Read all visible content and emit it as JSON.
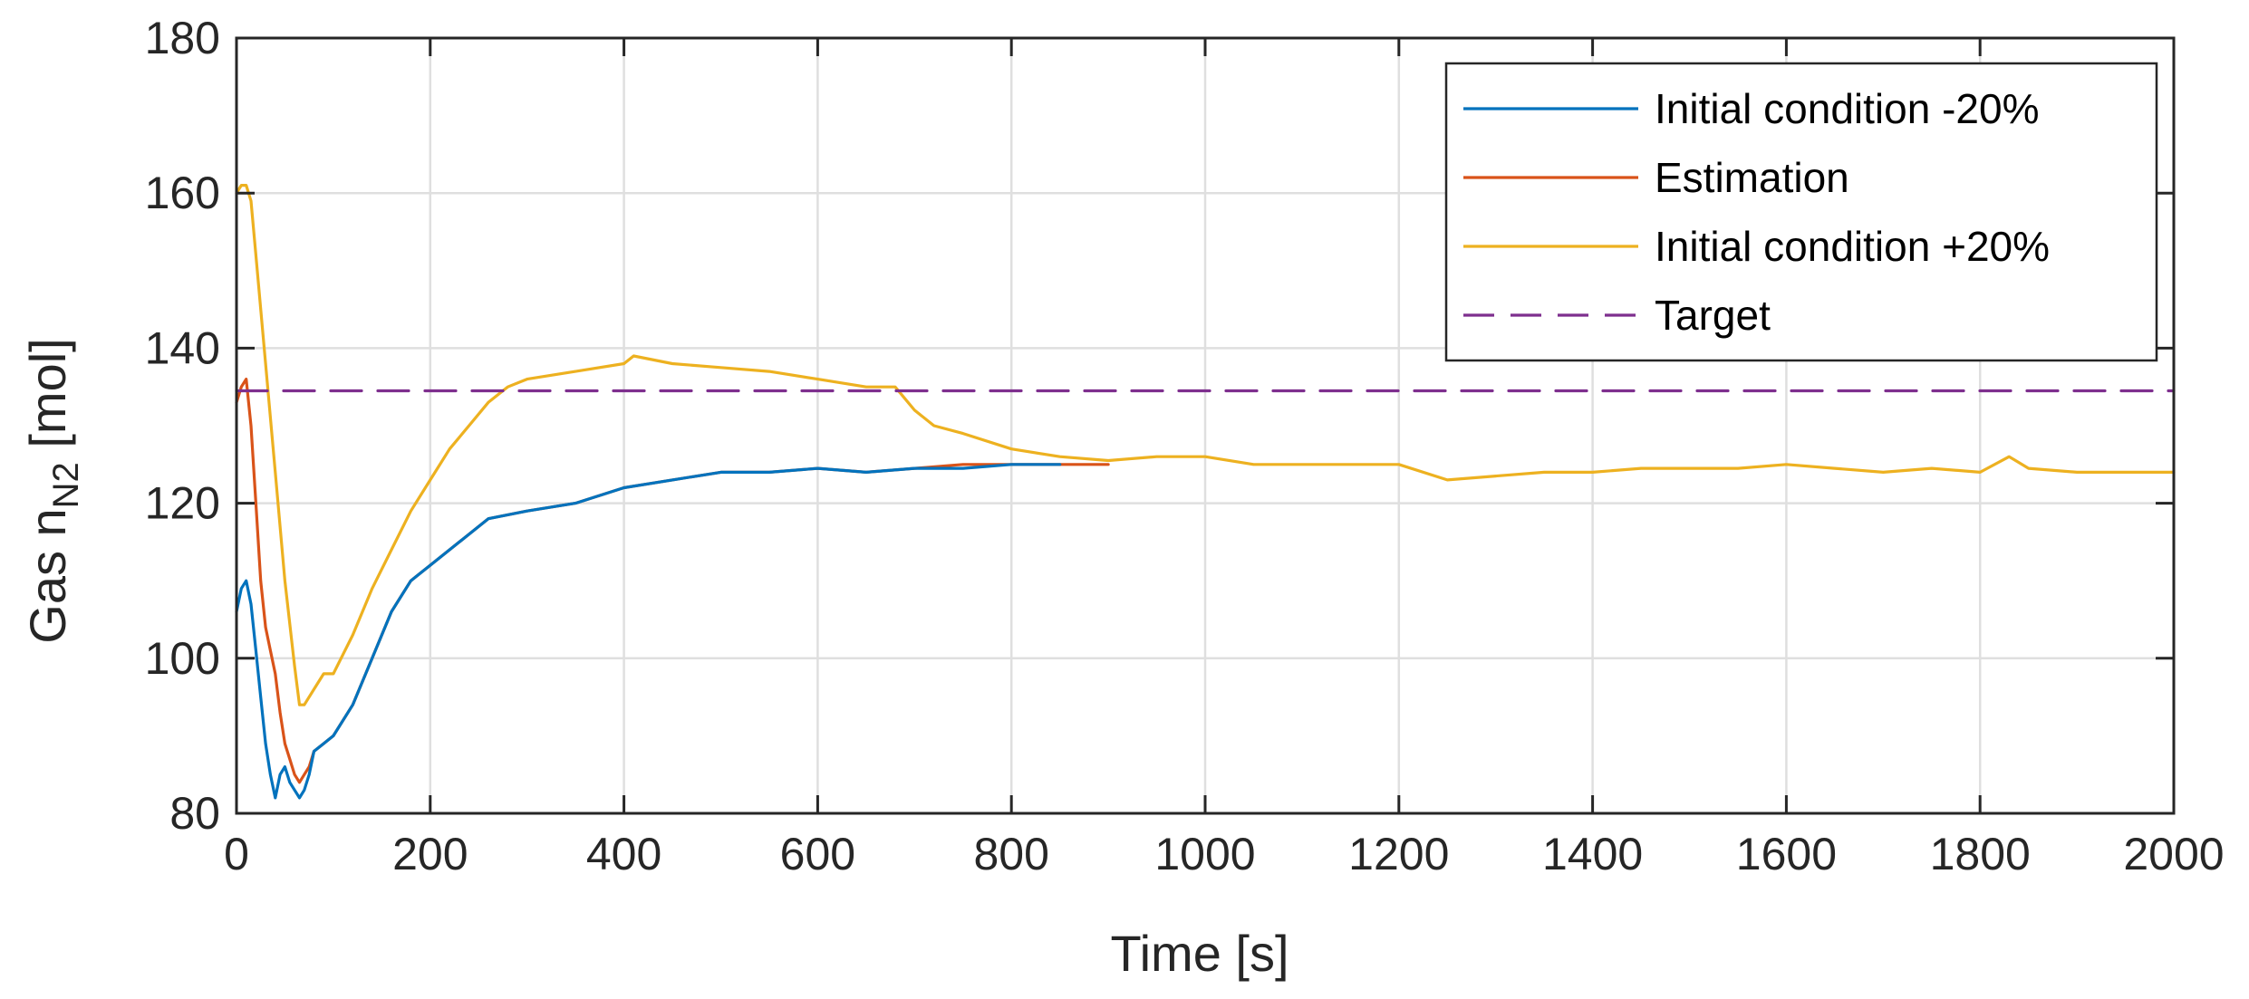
{
  "chart_data": {
    "type": "line",
    "xlabel": "Time [s]",
    "ylabel": {
      "main": "Gas n",
      "sub": "N2",
      "unit": " [mol]"
    },
    "xlim": [
      0,
      2000
    ],
    "ylim": [
      80,
      180
    ],
    "xticks": [
      0,
      200,
      400,
      600,
      800,
      1000,
      1200,
      1400,
      1600,
      1800,
      2000
    ],
    "yticks": [
      80,
      100,
      120,
      140,
      160,
      180
    ],
    "xtick_labels": [
      "0",
      "200",
      "400",
      "600",
      "800",
      "1000",
      "1200",
      "1400",
      "1600",
      "1800",
      "2000"
    ],
    "ytick_labels": [
      "80",
      "100",
      "120",
      "140",
      "160",
      "180"
    ],
    "grid": true,
    "legend_position": "top-right",
    "series": [
      {
        "name": "Initial condition -20%",
        "color": "#0072BD",
        "style": "solid",
        "x": [
          0,
          5,
          10,
          15,
          20,
          25,
          30,
          35,
          40,
          45,
          50,
          55,
          60,
          65,
          70,
          75,
          80,
          90,
          100,
          120,
          140,
          160,
          180,
          200,
          230,
          260,
          300,
          350,
          400,
          450,
          500,
          550,
          600,
          650,
          700,
          750,
          800,
          850
        ],
        "y": [
          106,
          109,
          110,
          107,
          101,
          95,
          89,
          85,
          82,
          85,
          86,
          84,
          83,
          82,
          83,
          85,
          88,
          89,
          90,
          94,
          100,
          106,
          110,
          112,
          115,
          118,
          119,
          120,
          122,
          123,
          124,
          124,
          124.5,
          124,
          124.5,
          124.5,
          125,
          125
        ]
      },
      {
        "name": "Estimation",
        "color": "#D95319",
        "style": "solid",
        "x": [
          0,
          5,
          10,
          15,
          20,
          25,
          30,
          35,
          40,
          45,
          50,
          55,
          60,
          65,
          70,
          75,
          80,
          90,
          100,
          120,
          140,
          160,
          180,
          200,
          230,
          260,
          300,
          350,
          400,
          450,
          500,
          550,
          600,
          650,
          700,
          750,
          800,
          850,
          900
        ],
        "y": [
          133,
          135,
          136,
          130,
          120,
          110,
          104,
          101,
          98,
          93,
          89,
          87,
          85,
          84,
          85,
          86,
          88,
          89,
          90,
          94,
          100,
          106,
          110,
          112,
          115,
          118,
          119,
          120,
          122,
          123,
          124,
          124,
          124.5,
          124,
          124.5,
          125,
          125,
          125,
          125
        ]
      },
      {
        "name": "Initial condition +20%",
        "color": "#EDB120",
        "style": "solid",
        "x": [
          0,
          5,
          10,
          15,
          20,
          30,
          40,
          50,
          60,
          65,
          70,
          80,
          90,
          100,
          120,
          140,
          160,
          180,
          200,
          220,
          240,
          260,
          280,
          300,
          350,
          400,
          410,
          450,
          500,
          550,
          600,
          650,
          680,
          700,
          720,
          750,
          800,
          850,
          900,
          950,
          1000,
          1050,
          1100,
          1150,
          1200,
          1250,
          1300,
          1350,
          1400,
          1450,
          1500,
          1550,
          1600,
          1650,
          1700,
          1750,
          1800,
          1830,
          1850,
          1900,
          1950,
          2000
        ],
        "y": [
          160,
          161,
          161,
          159,
          152,
          138,
          124,
          110,
          99,
          94,
          94,
          96,
          98,
          98,
          103,
          109,
          114,
          119,
          123,
          127,
          130,
          133,
          135,
          136,
          137,
          138,
          139,
          138,
          137.5,
          137,
          136,
          135,
          135,
          132,
          130,
          129,
          127,
          126,
          125.5,
          126,
          126,
          125,
          125,
          125,
          125,
          123,
          123.5,
          124,
          124,
          124.5,
          124.5,
          124.5,
          125,
          124.5,
          124,
          124.5,
          124,
          126,
          124.5,
          124,
          124,
          124
        ]
      },
      {
        "name": "Target",
        "color": "#7E2F8E",
        "style": "dashed",
        "x": [
          0,
          2000
        ],
        "y": [
          134.5,
          134.5
        ]
      }
    ]
  }
}
